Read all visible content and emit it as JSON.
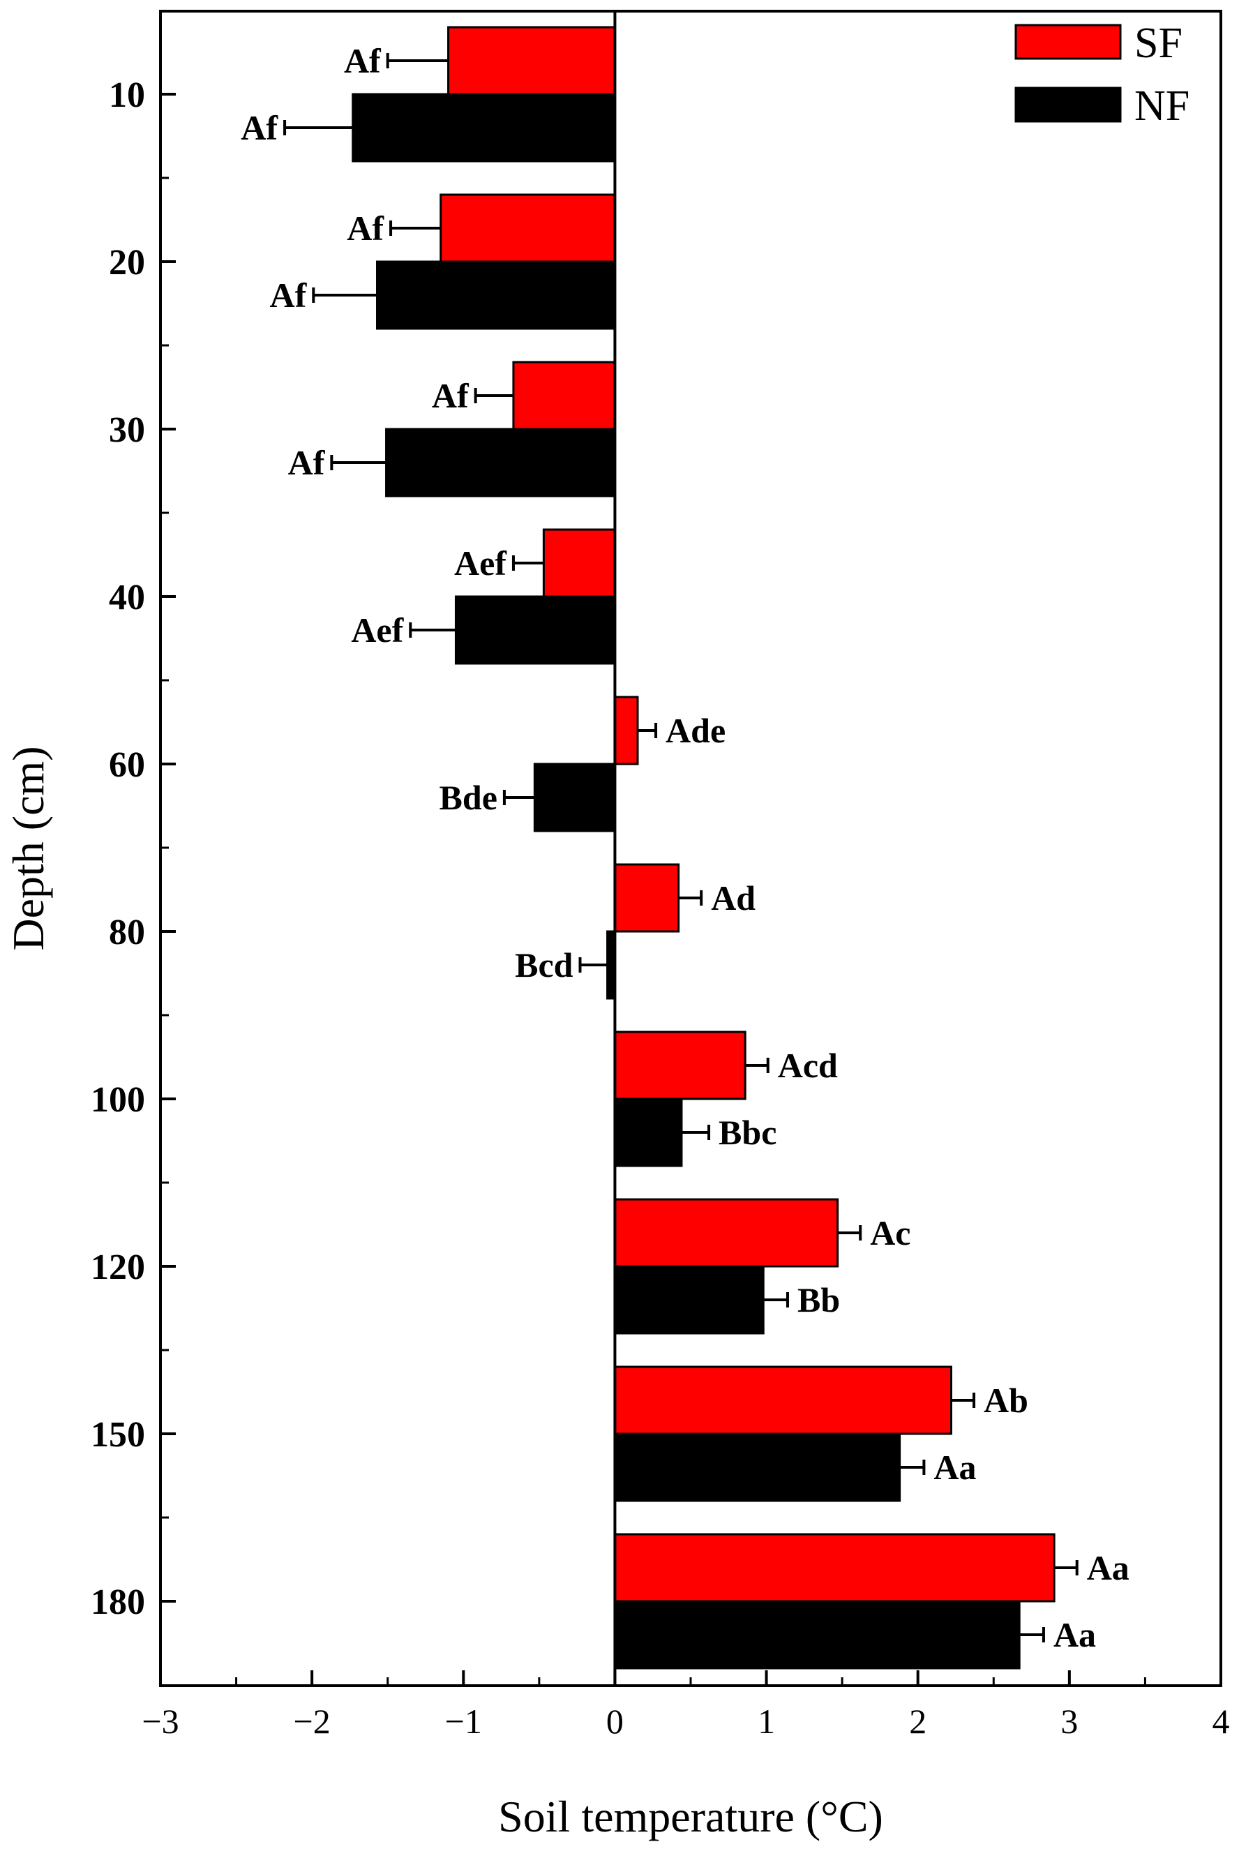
{
  "chart_data": {
    "type": "bar",
    "orientation": "horizontal",
    "title": "",
    "xlabel": "Soil temperature (°C)",
    "ylabel": "Depth (cm)",
    "xlim": [
      -3,
      4
    ],
    "x_ticks": [
      -3,
      -2,
      -1,
      0,
      1,
      2,
      3,
      4
    ],
    "x_tick_labels": [
      "−3",
      "−2",
      "−1",
      "0",
      "1",
      "2",
      "3",
      "4"
    ],
    "categories": [
      "10",
      "20",
      "30",
      "40",
      "60",
      "80",
      "100",
      "120",
      "150",
      "180"
    ],
    "legend_position": "top-right",
    "colors": {
      "SF": "#ff0000",
      "NF": "#000000"
    },
    "series": [
      {
        "name": "SF",
        "values": [
          -1.1,
          -1.15,
          -0.67,
          -0.47,
          0.15,
          0.42,
          0.86,
          1.47,
          2.22,
          2.9
        ],
        "errors": [
          0.4,
          0.33,
          0.25,
          0.2,
          0.12,
          0.15,
          0.15,
          0.15,
          0.15,
          0.15
        ],
        "labels": [
          "Af",
          "Af",
          "Af",
          "Aef",
          "Ade",
          "Ad",
          "Acd",
          "Ac",
          "Ab",
          "Aa"
        ]
      },
      {
        "name": "NF",
        "values": [
          -1.73,
          -1.57,
          -1.51,
          -1.05,
          -0.53,
          -0.05,
          0.44,
          0.98,
          1.88,
          2.67
        ],
        "errors": [
          0.45,
          0.42,
          0.36,
          0.3,
          0.2,
          0.18,
          0.18,
          0.16,
          0.16,
          0.16
        ],
        "labels": [
          "Af",
          "Af",
          "Af",
          "Aef",
          "Bde",
          "Bcd",
          "Bbc",
          "Bb",
          "Aa",
          "Aa"
        ]
      }
    ]
  }
}
